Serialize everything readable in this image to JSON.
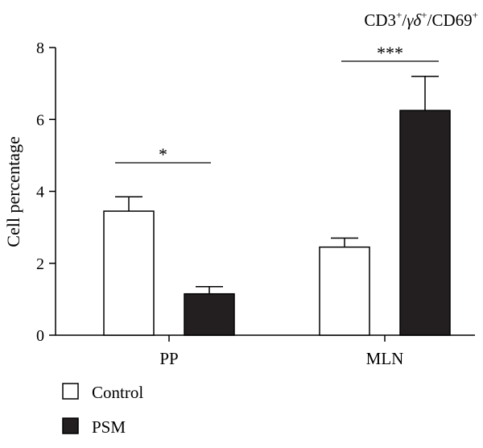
{
  "chart_data": {
    "type": "bar",
    "title_parts": [
      "CD3",
      "+",
      "/",
      "γδ",
      "+",
      "/CD69",
      "+"
    ],
    "ylabel": "Cell percentage",
    "xlabel": "",
    "ylim": [
      0,
      8
    ],
    "yticks": [
      "0",
      "2",
      "4",
      "6",
      "8"
    ],
    "categories": [
      "PP",
      "MLN"
    ],
    "series": [
      {
        "name": "Control",
        "values": [
          3.45,
          2.45
        ],
        "errors": [
          0.4,
          0.25
        ],
        "color": "#ffffff"
      },
      {
        "name": "PSM",
        "values": [
          1.15,
          6.25
        ],
        "errors": [
          0.2,
          0.95
        ],
        "color": "#231f20"
      }
    ],
    "significance": [
      "*",
      "***"
    ],
    "legend": {
      "position": "bottom-left",
      "entries": [
        "Control",
        "PSM"
      ]
    },
    "grid": false
  }
}
